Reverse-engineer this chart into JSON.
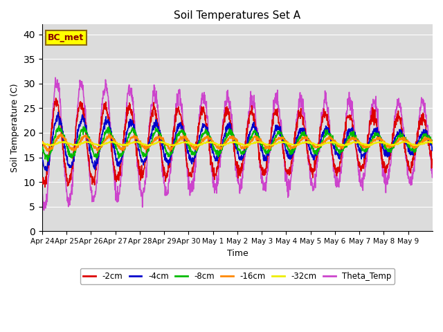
{
  "title": "Soil Temperatures Set A",
  "xlabel": "Time",
  "ylabel": "Soil Temperature (C)",
  "ylim": [
    0,
    42
  ],
  "yticks": [
    0,
    5,
    10,
    15,
    20,
    25,
    30,
    35,
    40
  ],
  "annotation_text": "BC_met",
  "annotation_bg": "#ffff00",
  "annotation_border": "#8B6914",
  "plot_bg": "#dcdcdc",
  "fig_bg": "#ffffff",
  "series": {
    "-2cm": {
      "color": "#dd0000",
      "lw": 1.2,
      "zorder": 3
    },
    "-4cm": {
      "color": "#0000cc",
      "lw": 1.2,
      "zorder": 3
    },
    "-8cm": {
      "color": "#00bb00",
      "lw": 1.2,
      "zorder": 3
    },
    "-16cm": {
      "color": "#ff8800",
      "lw": 1.2,
      "zorder": 3
    },
    "-32cm": {
      "color": "#eeee00",
      "lw": 1.2,
      "zorder": 3
    },
    "Theta_Temp": {
      "color": "#cc44cc",
      "lw": 1.2,
      "zorder": 2
    }
  },
  "x_tick_labels": [
    "Apr 24",
    "Apr 25",
    "Apr 26",
    "Apr 27",
    "Apr 28",
    "Apr 29",
    "Apr 30",
    "May 1",
    "May 2",
    "May 3",
    "May 4",
    "May 5",
    "May 6",
    "May 7",
    "May 8",
    "May 9"
  ],
  "n_days": 16,
  "pts_per_day": 96
}
